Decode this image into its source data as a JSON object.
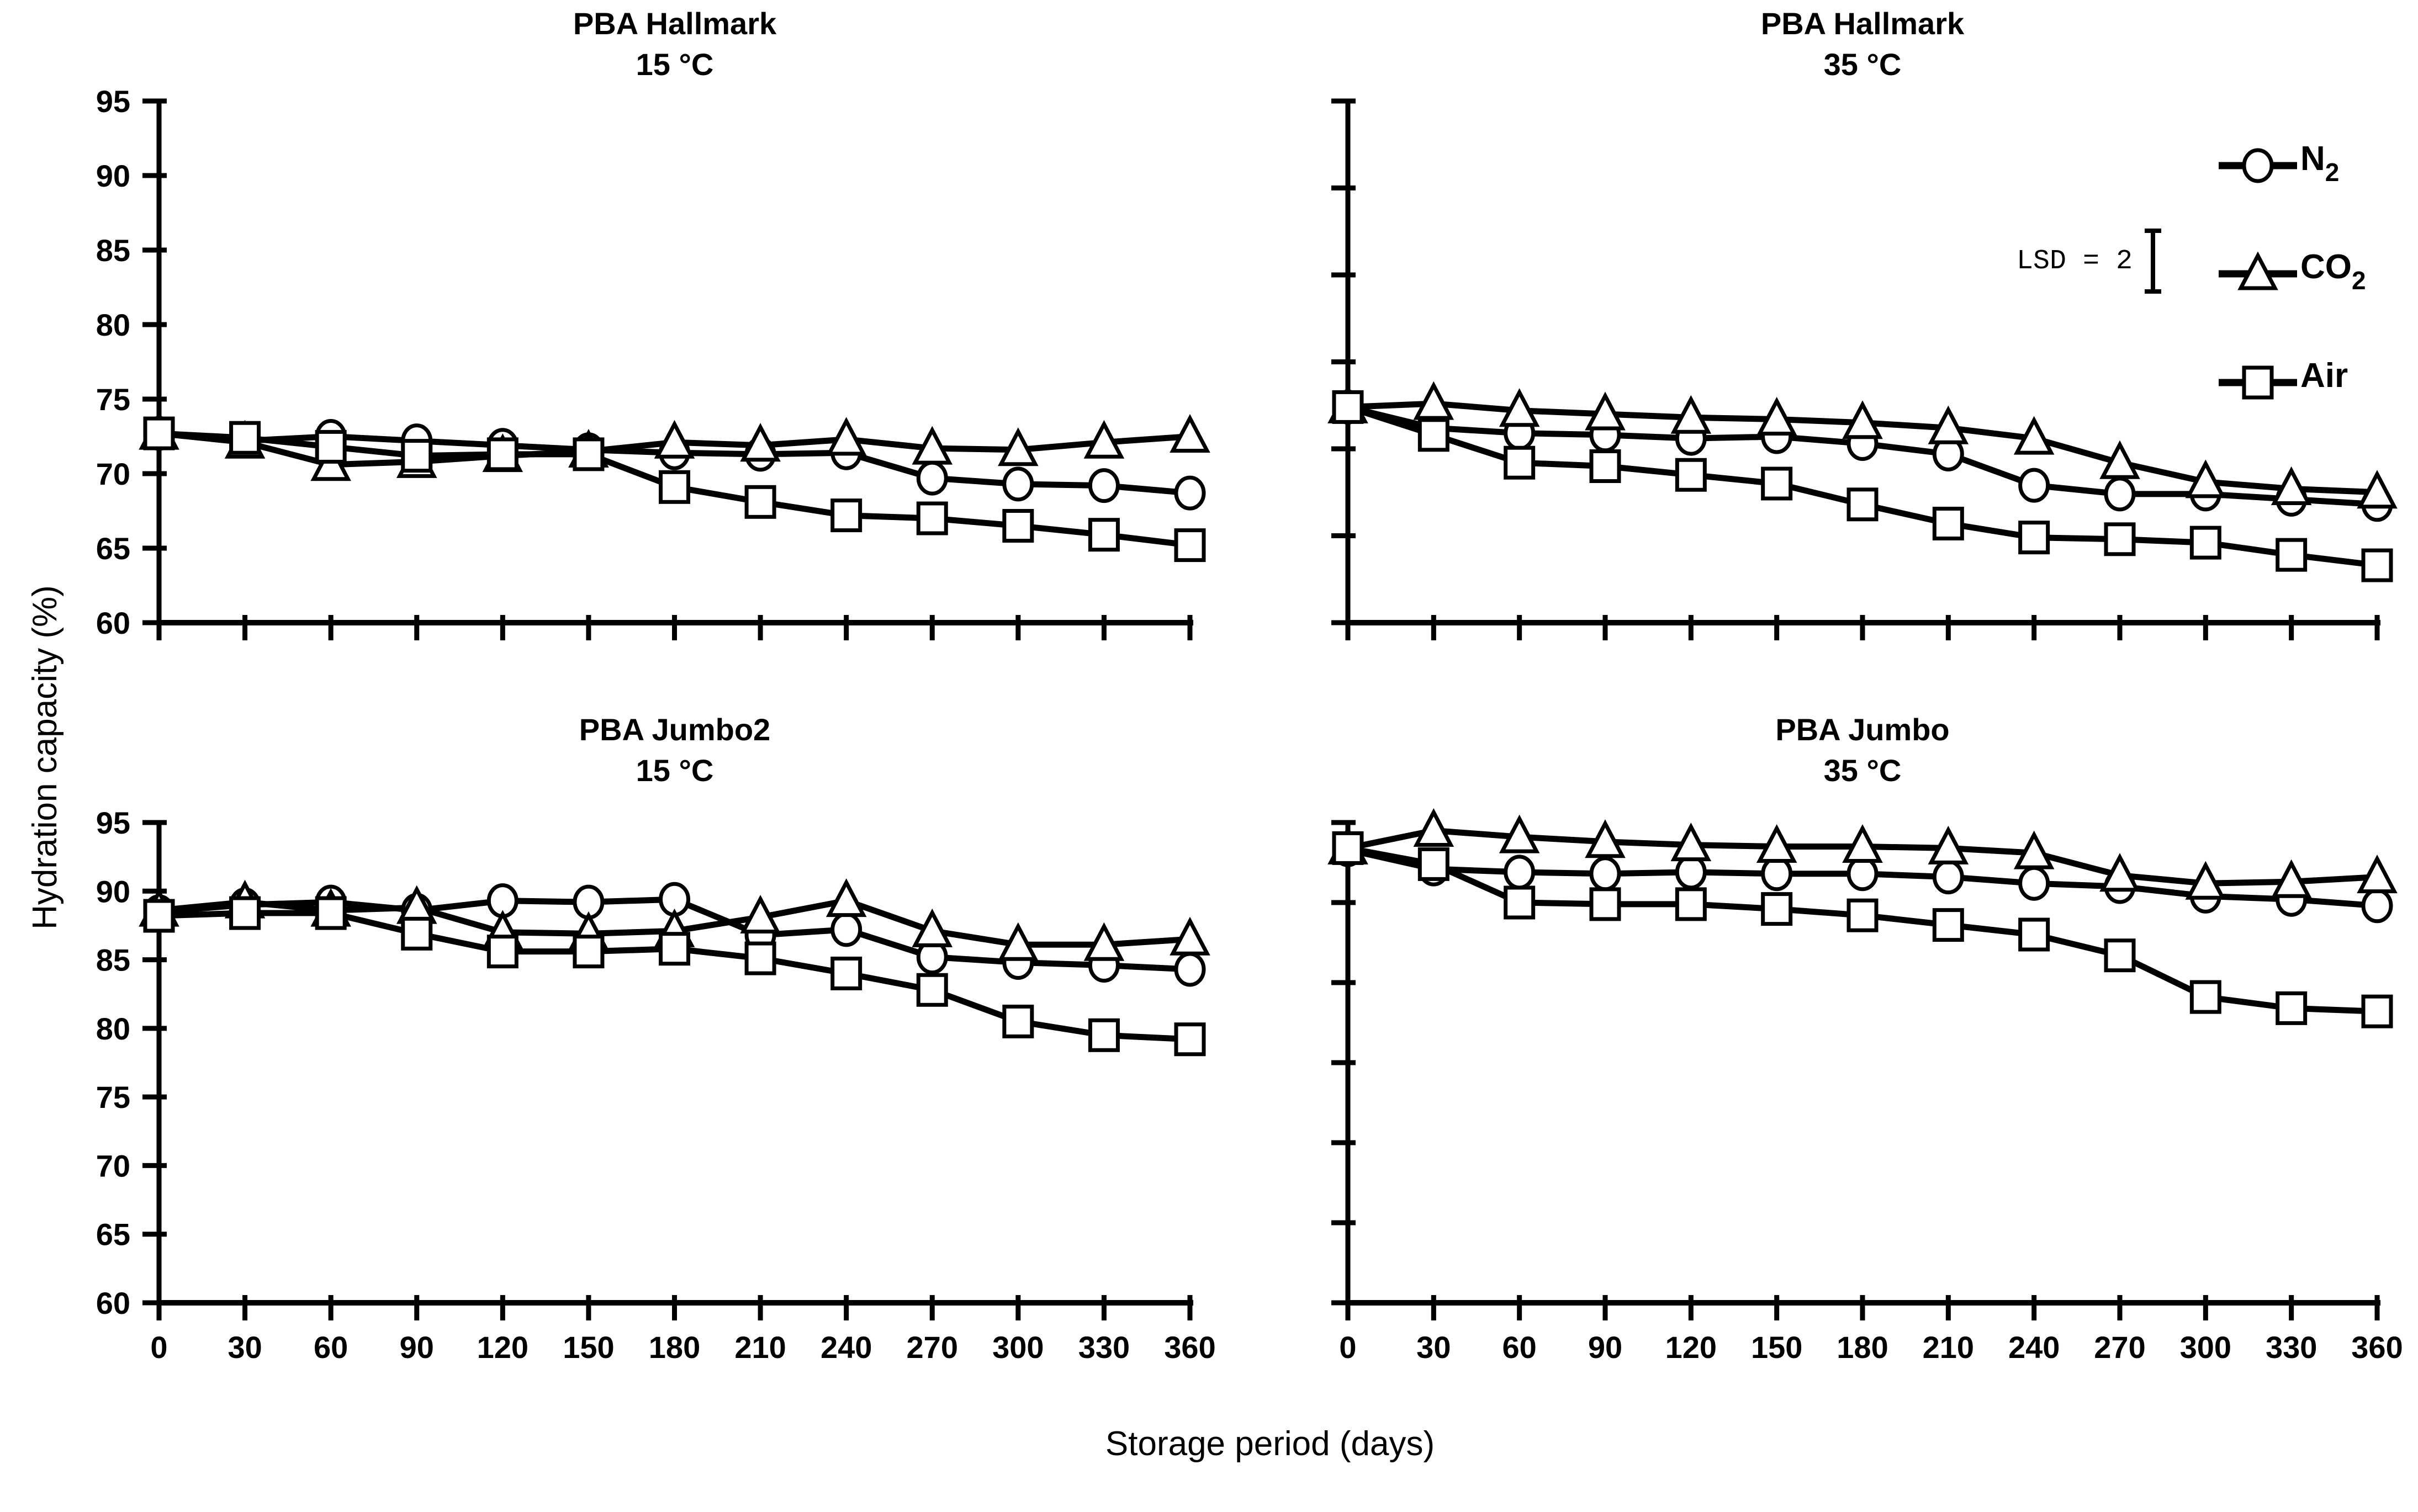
{
  "figure": {
    "y_axis_label": "Hydration capacity (%)",
    "x_axis_label": "Storage period (days)",
    "colors": {
      "line": "#000000",
      "background": "#ffffff"
    },
    "lsd": {
      "label": "LSD = 2",
      "value": 2
    }
  },
  "legend": [
    {
      "name": "N2",
      "label": "N",
      "sub": "2",
      "marker": "circle"
    },
    {
      "name": "CO2",
      "label": "CO",
      "sub": "2",
      "marker": "triangle"
    },
    {
      "name": "Air",
      "label": "Air",
      "sub": "",
      "marker": "square"
    }
  ],
  "chart_data": [
    {
      "type": "line",
      "position": "top-left",
      "title": "PBA Hallmark",
      "subtitle": "15 °C",
      "xlabel": "Storage period (days)",
      "ylabel": "Hydration capacity (%)",
      "x": [
        0,
        30,
        60,
        90,
        120,
        150,
        180,
        210,
        240,
        270,
        300,
        330,
        360
      ],
      "ylim": [
        60,
        95
      ],
      "yticks": [
        60,
        65,
        70,
        75,
        80,
        85,
        90,
        95
      ],
      "ytick_labels_visible": true,
      "xtick_labels_visible": false,
      "grid": false,
      "series": [
        {
          "name": "N2",
          "marker": "circle",
          "values": [
            72.7,
            72.2,
            72.5,
            72.2,
            71.9,
            71.6,
            71.4,
            71.3,
            71.4,
            69.7,
            69.3,
            69.2,
            68.7
          ]
        },
        {
          "name": "CO2",
          "marker": "triangle",
          "values": [
            72.7,
            72.1,
            70.6,
            70.8,
            71.2,
            71.5,
            72.1,
            71.9,
            72.3,
            71.7,
            71.6,
            72.1,
            72.5
          ]
        },
        {
          "name": "Air",
          "marker": "square",
          "values": [
            72.7,
            72.4,
            71.8,
            71.2,
            71.3,
            71.3,
            69.1,
            68.1,
            67.2,
            67.0,
            66.5,
            65.9,
            65.2
          ]
        }
      ]
    },
    {
      "type": "line",
      "position": "top-right",
      "title": "PBA Hallmark",
      "subtitle": "35 °C",
      "xlabel": "Storage period (days)",
      "ylabel": "Hydration capacity (%)",
      "x": [
        0,
        30,
        60,
        90,
        120,
        150,
        180,
        210,
        240,
        270,
        300,
        330,
        360
      ],
      "ylim": [
        65,
        95
      ],
      "yticks": [
        65,
        70,
        75,
        80,
        85,
        90,
        95
      ],
      "ytick_labels_visible": false,
      "xtick_labels_visible": false,
      "grid": false,
      "series": [
        {
          "name": "N2",
          "marker": "circle",
          "values": [
            77.4,
            76.2,
            75.9,
            75.8,
            75.6,
            75.7,
            75.3,
            74.7,
            72.9,
            72.4,
            72.4,
            72.1,
            71.8
          ]
        },
        {
          "name": "CO2",
          "marker": "triangle",
          "values": [
            77.4,
            77.6,
            77.2,
            77.0,
            76.8,
            76.7,
            76.5,
            76.2,
            75.6,
            74.2,
            73.1,
            72.7,
            72.5
          ]
        },
        {
          "name": "Air",
          "marker": "square",
          "values": [
            77.4,
            75.8,
            74.2,
            74.0,
            73.5,
            73.0,
            71.8,
            70.7,
            69.9,
            69.8,
            69.6,
            68.9,
            68.3
          ]
        }
      ]
    },
    {
      "type": "line",
      "position": "bottom-left",
      "title": "PBA Jumbo2",
      "subtitle": "15 °C",
      "xlabel": "Storage period (days)",
      "ylabel": "Hydration capacity (%)",
      "x": [
        0,
        30,
        60,
        90,
        120,
        150,
        180,
        210,
        240,
        270,
        300,
        330,
        360
      ],
      "ylim": [
        60,
        95
      ],
      "yticks": [
        60,
        65,
        70,
        75,
        80,
        85,
        90,
        95
      ],
      "ytick_labels_visible": true,
      "xtick_labels_visible": true,
      "grid": false,
      "series": [
        {
          "name": "N2",
          "marker": "circle",
          "values": [
            88.5,
            89.0,
            89.2,
            88.6,
            89.3,
            89.2,
            89.4,
            86.8,
            87.2,
            85.2,
            84.8,
            84.6,
            84.3
          ]
        },
        {
          "name": "CO2",
          "marker": "triangle",
          "values": [
            88.6,
            89.2,
            88.6,
            88.8,
            87.0,
            86.9,
            87.1,
            88.1,
            89.3,
            87.1,
            86.1,
            86.1,
            86.5
          ]
        },
        {
          "name": "Air",
          "marker": "square",
          "values": [
            88.2,
            88.4,
            88.4,
            86.9,
            85.6,
            85.6,
            85.8,
            85.1,
            84.0,
            82.8,
            80.5,
            79.5,
            79.2
          ]
        }
      ]
    },
    {
      "type": "line",
      "position": "bottom-right",
      "title": "PBA Jumbo",
      "subtitle": "35 °C",
      "xlabel": "Storage period (days)",
      "ylabel": "Hydration capacity (%)",
      "x": [
        0,
        30,
        60,
        90,
        120,
        150,
        180,
        210,
        240,
        270,
        300,
        330,
        360
      ],
      "ylim": [
        65,
        95
      ],
      "yticks": [
        65,
        70,
        75,
        80,
        85,
        90,
        95
      ],
      "ytick_labels_visible": false,
      "xtick_labels_visible": true,
      "grid": false,
      "series": [
        {
          "name": "N2",
          "marker": "circle",
          "values": [
            93.3,
            92.1,
            91.9,
            91.8,
            91.9,
            91.8,
            91.8,
            91.6,
            91.2,
            91.0,
            90.4,
            90.2,
            89.8
          ]
        },
        {
          "name": "CO2",
          "marker": "triangle",
          "values": [
            93.4,
            94.5,
            94.1,
            93.8,
            93.6,
            93.5,
            93.5,
            93.4,
            93.1,
            91.7,
            91.2,
            91.3,
            91.6
          ]
        },
        {
          "name": "Air",
          "marker": "square",
          "values": [
            93.4,
            92.4,
            90.0,
            89.9,
            89.9,
            89.6,
            89.2,
            88.6,
            88.0,
            86.7,
            84.1,
            83.4,
            83.2
          ]
        }
      ]
    }
  ]
}
